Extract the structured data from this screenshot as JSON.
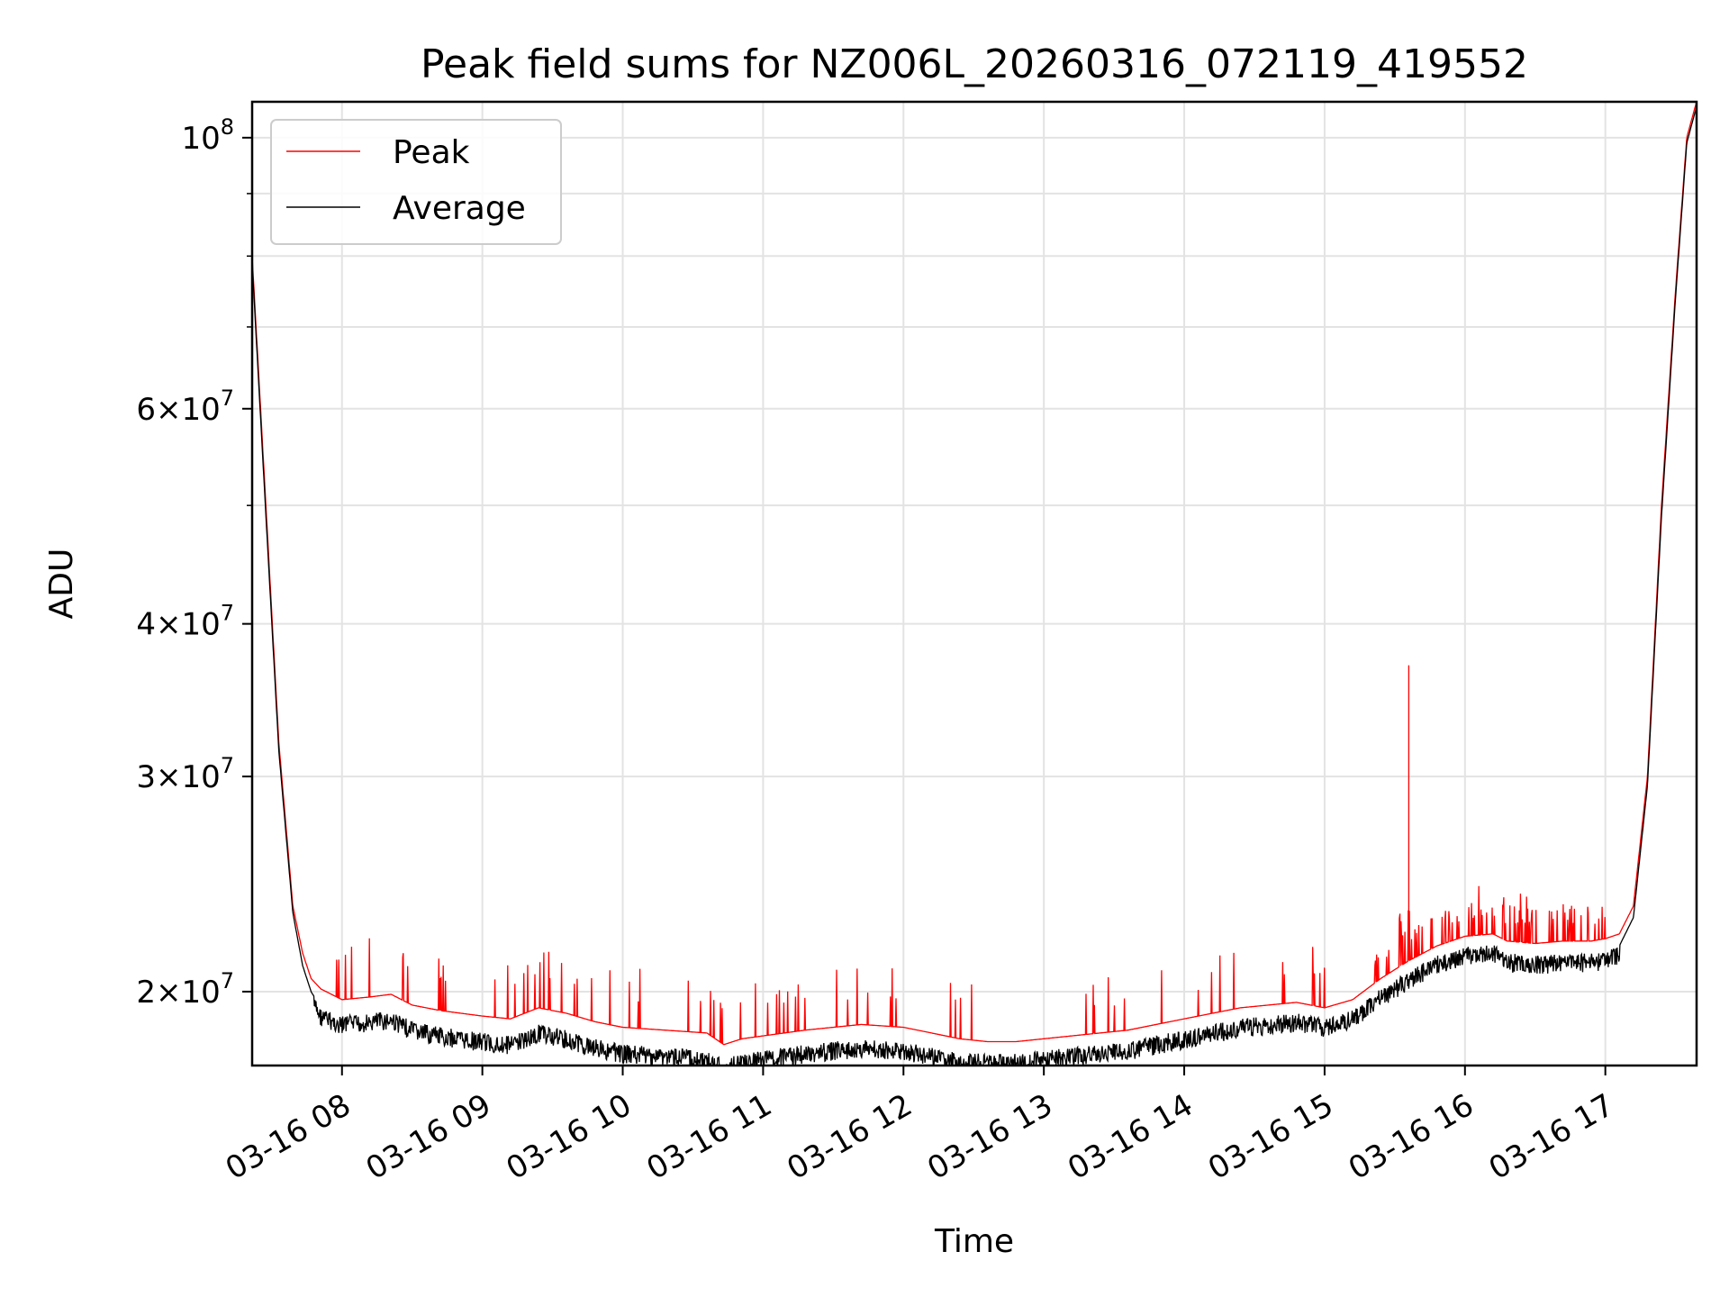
{
  "chart_data": {
    "type": "line",
    "title": "Peak field sums for NZ006L_20260316_072119_419552",
    "xlabel": "Time",
    "ylabel": "ADU",
    "yscale": "log",
    "grid": true,
    "legend_position": "top-left",
    "xlim_hours": [
      7.36,
      17.65
    ],
    "ylim": [
      17400000,
      107000000
    ],
    "x_ticks": [
      {
        "label": "03-16 08",
        "value": 8
      },
      {
        "label": "03-16 09",
        "value": 9
      },
      {
        "label": "03-16 10",
        "value": 10
      },
      {
        "label": "03-16 11",
        "value": 11
      },
      {
        "label": "03-16 12",
        "value": 12
      },
      {
        "label": "03-16 13",
        "value": 13
      },
      {
        "label": "03-16 14",
        "value": 14
      },
      {
        "label": "03-16 15",
        "value": 15
      },
      {
        "label": "03-16 16",
        "value": 16
      },
      {
        "label": "03-16 17",
        "value": 17
      }
    ],
    "y_ticks": [
      {
        "mant": "2",
        "exp": "7",
        "value": 20000000
      },
      {
        "mant": "3",
        "exp": "7",
        "value": 30000000
      },
      {
        "mant": "4",
        "exp": "7",
        "value": 40000000
      },
      {
        "mant": "6",
        "exp": "7",
        "value": 60000000
      },
      {
        "mant": "",
        "exp": "8",
        "value": 100000000
      }
    ],
    "y_minor_ticks": [
      50000000,
      70000000,
      80000000,
      90000000
    ],
    "series": [
      {
        "name": "Peak",
        "color": "#ff0000",
        "x": [
          7.36,
          7.45,
          7.55,
          7.65,
          7.72,
          7.78,
          7.85,
          8.0,
          8.2,
          8.35,
          8.5,
          8.7,
          9.0,
          9.2,
          9.4,
          9.6,
          9.8,
          10.0,
          10.3,
          10.6,
          10.72,
          10.85,
          11.0,
          11.3,
          11.5,
          11.7,
          12.0,
          12.2,
          12.4,
          12.6,
          12.8,
          13.0,
          13.2,
          13.4,
          13.6,
          13.8,
          14.0,
          14.2,
          14.4,
          14.6,
          14.8,
          15.0,
          15.2,
          15.4,
          15.6,
          15.8,
          16.0,
          16.2,
          16.3,
          16.5,
          16.7,
          16.9,
          17.0,
          17.1,
          17.2,
          17.3,
          17.4,
          17.5,
          17.58,
          17.62,
          17.65
        ],
        "y": [
          80000000,
          52000000,
          32000000,
          23500000,
          21500000,
          20500000,
          20100000,
          19700000,
          19800000,
          19900000,
          19500000,
          19300000,
          19100000,
          19000000,
          19400000,
          19200000,
          18900000,
          18700000,
          18600000,
          18500000,
          18100000,
          18300000,
          18400000,
          18600000,
          18700000,
          18800000,
          18700000,
          18500000,
          18300000,
          18200000,
          18200000,
          18300000,
          18400000,
          18500000,
          18600000,
          18800000,
          19000000,
          19200000,
          19400000,
          19500000,
          19600000,
          19400000,
          19700000,
          20500000,
          21200000,
          21800000,
          22200000,
          22300000,
          22000000,
          21900000,
          22000000,
          22000000,
          22100000,
          22300000,
          23500000,
          30000000,
          50000000,
          75000000,
          100000000,
          104000000,
          107000000
        ]
      },
      {
        "name": "Average",
        "color": "#000000",
        "x": [
          7.36,
          7.45,
          7.55,
          7.65,
          7.72,
          7.78,
          7.85,
          8.0,
          8.2,
          8.35,
          8.5,
          8.7,
          9.0,
          9.2,
          9.4,
          9.6,
          9.8,
          10.0,
          10.3,
          10.6,
          10.72,
          10.85,
          11.0,
          11.3,
          11.5,
          11.7,
          12.0,
          12.2,
          12.4,
          12.6,
          12.8,
          13.0,
          13.2,
          13.4,
          13.6,
          13.8,
          14.0,
          14.2,
          14.4,
          14.6,
          14.8,
          15.0,
          15.2,
          15.4,
          15.6,
          15.8,
          16.0,
          16.2,
          16.3,
          16.5,
          16.7,
          16.9,
          17.0,
          17.1,
          17.2,
          17.3,
          17.4,
          17.5,
          17.58,
          17.62,
          17.65
        ],
        "y": [
          79000000,
          51000000,
          31500000,
          23200000,
          21000000,
          20000000,
          19400000,
          19100000,
          19200000,
          19300000,
          18900000,
          18700000,
          18500000,
          18400000,
          18800000,
          18600000,
          18300000,
          18100000,
          18000000,
          17900000,
          17600000,
          17800000,
          17900000,
          18100000,
          18200000,
          18300000,
          18200000,
          18000000,
          17800000,
          17800000,
          17800000,
          17900000,
          18000000,
          18100000,
          18200000,
          18400000,
          18600000,
          18800000,
          19000000,
          19100000,
          19200000,
          19000000,
          19300000,
          20100000,
          20800000,
          21400000,
          21800000,
          21900000,
          21500000,
          21400000,
          21500000,
          21500000,
          21600000,
          21800000,
          23000000,
          29500000,
          49000000,
          74000000,
          99000000,
          103000000,
          106000000
        ]
      }
    ],
    "annotations": [
      {
        "type": "spike",
        "series": "Peak",
        "x": 15.6,
        "y": 37000000
      }
    ]
  }
}
